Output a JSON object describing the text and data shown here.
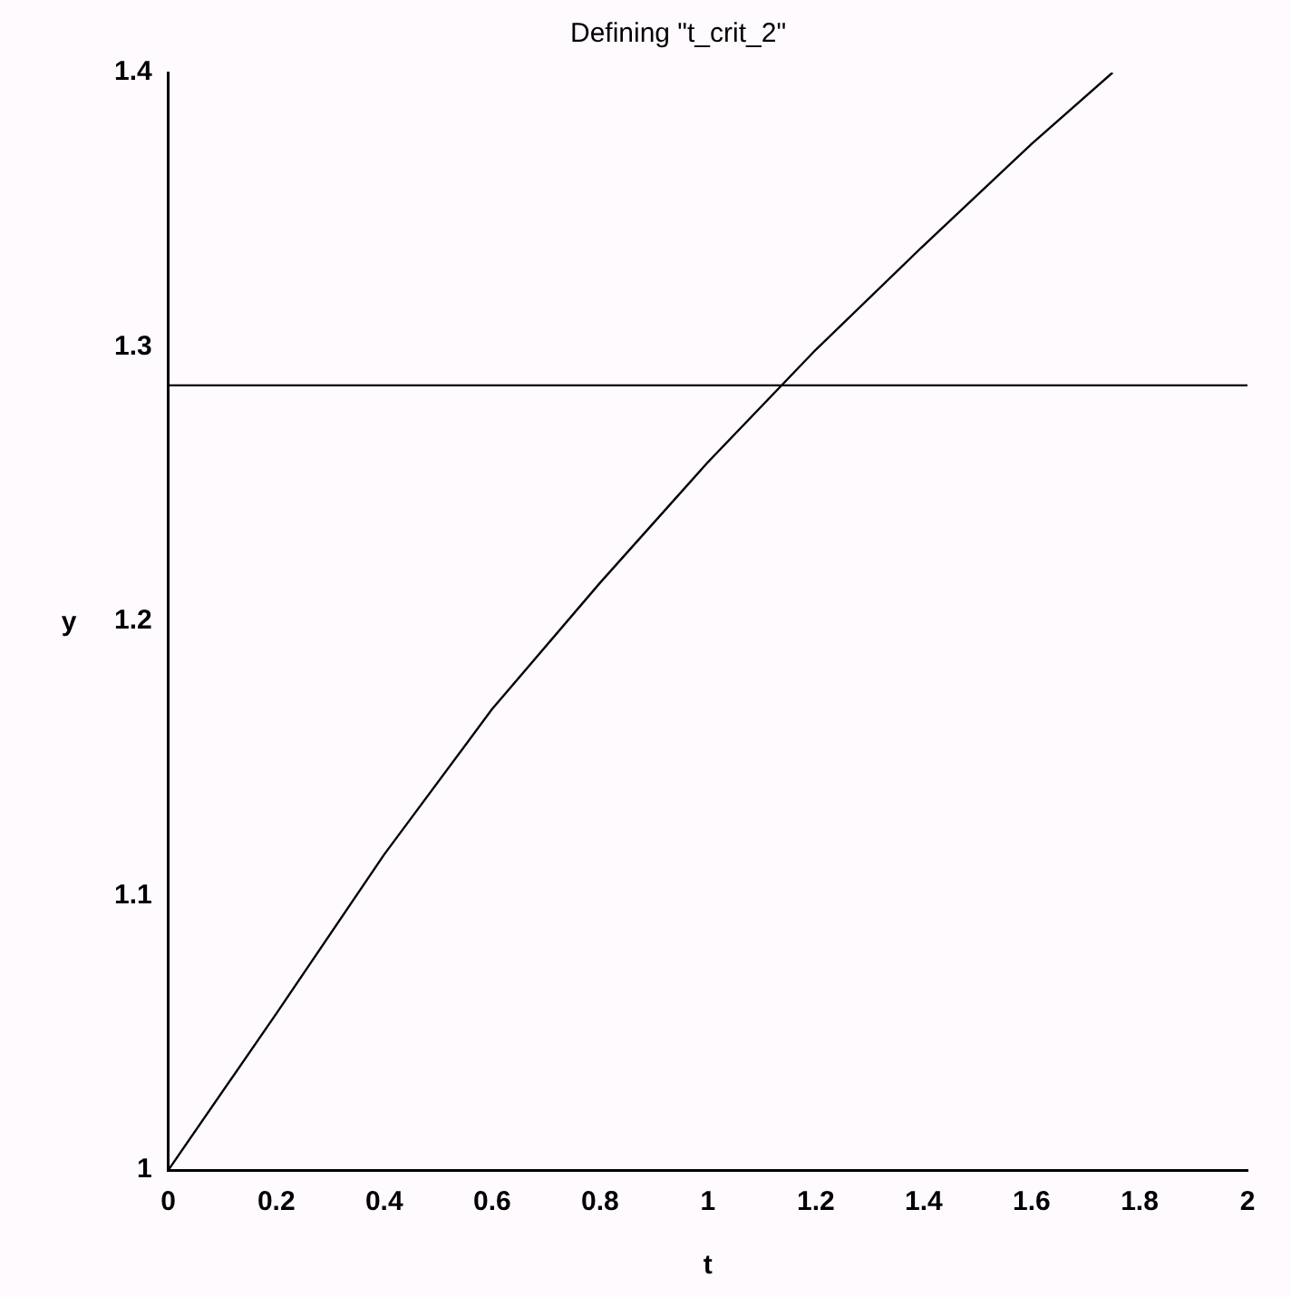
{
  "chart_data": {
    "type": "line",
    "title": "Defining \"t_crit_2\"",
    "xlabel": "t",
    "ylabel": "y",
    "x": [
      0,
      0.2,
      0.4,
      0.6,
      0.8,
      1.0,
      1.2,
      1.4,
      1.6,
      1.75
    ],
    "series": [
      {
        "color": "#000000",
        "values": [
          1,
          1.057,
          1.115,
          1.168,
          1.214,
          1.258,
          1.299,
          1.337,
          1.374,
          1.4
        ]
      }
    ],
    "ref_lines": [
      {
        "axis": "y",
        "value": 1.286,
        "color": "#000000"
      }
    ],
    "xlim": [
      0,
      2
    ],
    "xticks": [
      0,
      0.2,
      0.4,
      0.6,
      0.8,
      1,
      1.2,
      1.4,
      1.6,
      1.8,
      2
    ],
    "ylim": [
      1,
      1.4
    ],
    "yticks": [
      1,
      1.1,
      1.2,
      1.3,
      1.4
    ],
    "grid": false,
    "legend": false,
    "marker": "none",
    "line_style": "solid"
  }
}
